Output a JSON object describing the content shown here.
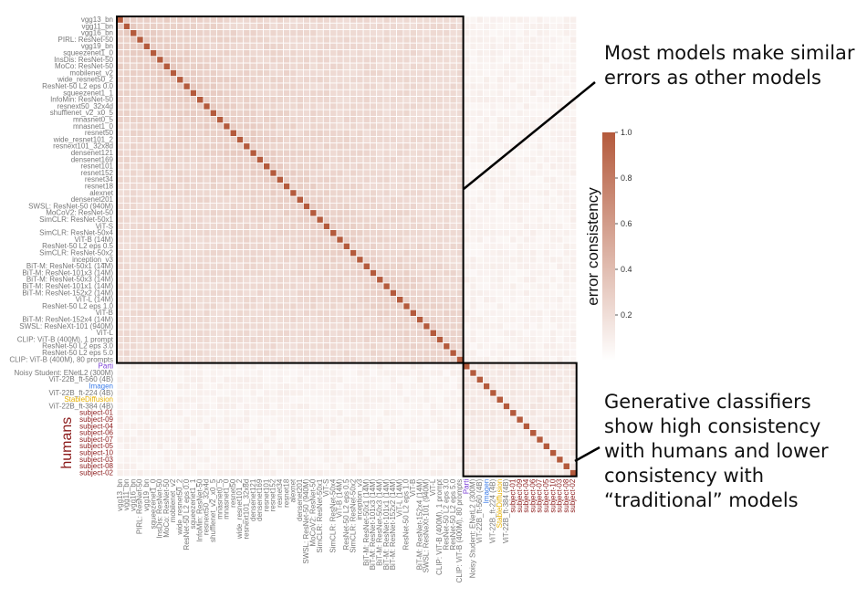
{
  "chart_data": {
    "type": "heatmap",
    "title": "",
    "xlabel": "",
    "ylabel": "",
    "models": [
      "vgg13_bn",
      "vgg11_bn",
      "vgg16_bn",
      "PIRL: ResNet-50",
      "vgg19_bn",
      "squeezenet1_0",
      "InsDis: ResNet-50",
      "MoCo: ResNet-50",
      "mobilenet_v2",
      "wide_resnet50_2",
      "ResNet-50 L2 eps 0.0",
      "squeezenet1_1",
      "InfoMin: ResNet-50",
      "resnext50_32x4d",
      "shufflenet_v2_x0_5",
      "mnasnet0_5",
      "mnasnet1_0",
      "resnet50",
      "wide_resnet101_2",
      "resnext101_32x8d",
      "densenet121",
      "densenet169",
      "resnet101",
      "resnet152",
      "resnet34",
      "resnet18",
      "alexnet",
      "densenet201",
      "SWSL: ResNet-50 (940M)",
      "MoCoV2: ResNet-50",
      "SimCLR: ResNet-50x1",
      "ViT-S",
      "SimCLR: ResNet-50x4",
      "ViT-B (14M)",
      "ResNet-50 L2 eps 0.5",
      "SimCLR: ResNet-50x2",
      "inception_v3",
      "BiT-M: ResNet-50x1 (14M)",
      "BiT-M: ResNet-101x3 (14M)",
      "BiT-M: ResNet-50x3 (14M)",
      "BiT-M: ResNet-101x1 (14M)",
      "BiT-M: ResNet-152x2 (14M)",
      "ViT-L (14M)",
      "ResNet-50 L2 eps 1.0",
      "ViT-B",
      "BiT-M: ResNet-152x4 (14M)",
      "SWSL: ResNeXt-101 (940M)",
      "ViT-L",
      "CLIP: ViT-B (400M), 1 prompt",
      "ResNet-50 L2 eps 3.0",
      "ResNet-50 L2 eps 5.0",
      "CLIP: ViT-B (400M), 80 prompts",
      "Parti",
      "Noisy Student: ENetL2 (300M)",
      "ViT-22B_ft-560 (4B)",
      "Imagen",
      "ViT-22B_ft-224 (4B)",
      "StableDiffusion",
      "ViT-22B_ft-384 (4B)",
      "subject-01",
      "subject-09",
      "subject-04",
      "subject-06",
      "subject-07",
      "subject-05",
      "subject-10",
      "subject-03",
      "subject-08",
      "subject-02"
    ],
    "label_colors": {
      "Parti": "#7b3fd6",
      "Imagen": "#3b7be8",
      "StableDiffusion": "#e6b000",
      "subject": "#8b1a1a",
      "default": "#777777"
    },
    "group_label": "humans",
    "group_label_color": "#8b1a1a",
    "blocks": {
      "traditional_models_count": 52,
      "generative_and_humans_count": 17,
      "traditional_within_mean": 0.22,
      "generative_within_mean": 0.14,
      "between_mean": 0.08,
      "diagonal": 1.0
    },
    "colorbar": {
      "label": "error consistency",
      "ticks": [
        "0.2",
        "0.4",
        "0.6",
        "0.8",
        "1.0"
      ],
      "range": [
        0.0,
        1.0
      ],
      "low_color": "#ffffff",
      "high_color": "#b45a3c"
    }
  },
  "annotations": {
    "top": "Most models make similar errors as other models",
    "bottom": "Generative classifiers show high consistency with humans and lower consistency with “traditional” models"
  }
}
